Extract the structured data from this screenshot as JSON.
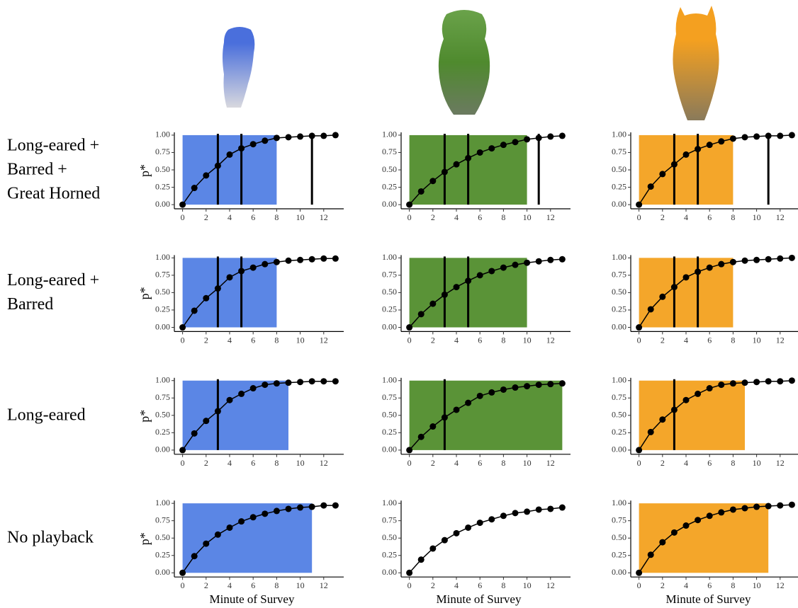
{
  "row_labels": [
    [
      "Long-eared +",
      "Barred +",
      "Great Horned"
    ],
    [
      "Long-eared +",
      "Barred"
    ],
    [
      "Long-eared"
    ],
    [
      "No playback"
    ]
  ],
  "chart_data": [
    {
      "type": "line",
      "color": "#5b86e5",
      "shade": [
        0,
        8
      ],
      "vlines": [
        3,
        5,
        11
      ],
      "ylabel": "p*",
      "x": [
        0,
        1,
        2,
        3,
        4,
        5,
        6,
        7,
        8,
        9,
        10,
        11,
        12,
        13
      ],
      "values": [
        0,
        0.24,
        0.42,
        0.56,
        0.72,
        0.81,
        0.87,
        0.92,
        0.96,
        0.97,
        0.98,
        0.99,
        0.99,
        1.0
      ],
      "xlim": [
        -0.7,
        13.7
      ],
      "ylim": [
        -0.06,
        1.04
      ],
      "xticks": [
        0,
        2,
        4,
        6,
        8,
        10,
        12
      ],
      "yticks": [
        {
          "value": 0,
          "label": "0.00"
        },
        {
          "value": 0.25,
          "label": "0.25"
        },
        {
          "value": 0.5,
          "label": "0.50"
        },
        {
          "value": 0.75,
          "label": "0.75"
        },
        {
          "value": 1,
          "label": "1.00"
        }
      ]
    },
    {
      "type": "line",
      "color": "#5a9337",
      "shade": [
        0,
        10
      ],
      "vlines": [
        3,
        5,
        11
      ],
      "x": [
        0,
        1,
        2,
        3,
        4,
        5,
        6,
        7,
        8,
        9,
        10,
        11,
        12,
        13
      ],
      "values": [
        0,
        0.19,
        0.34,
        0.47,
        0.58,
        0.67,
        0.75,
        0.81,
        0.86,
        0.9,
        0.94,
        0.96,
        0.98,
        0.99
      ],
      "xlim": [
        -0.7,
        13.7
      ],
      "ylim": [
        -0.06,
        1.04
      ],
      "xticks": [
        0,
        2,
        4,
        6,
        8,
        10,
        12
      ],
      "yticks": [
        {
          "value": 0,
          "label": "0.00"
        },
        {
          "value": 0.25,
          "label": "0.25"
        },
        {
          "value": 0.5,
          "label": "0.50"
        },
        {
          "value": 0.75,
          "label": "0.75"
        },
        {
          "value": 1,
          "label": "1.00"
        }
      ]
    },
    {
      "type": "line",
      "color": "#f4a62a",
      "shade": [
        0,
        8
      ],
      "vlines": [
        3,
        5,
        11
      ],
      "x": [
        0,
        1,
        2,
        3,
        4,
        5,
        6,
        7,
        8,
        9,
        10,
        11,
        12,
        13
      ],
      "values": [
        0,
        0.26,
        0.44,
        0.58,
        0.72,
        0.8,
        0.86,
        0.91,
        0.95,
        0.97,
        0.98,
        0.99,
        0.99,
        1.0
      ],
      "xlim": [
        -0.7,
        13.7
      ],
      "ylim": [
        -0.06,
        1.04
      ],
      "xticks": [
        0,
        2,
        4,
        6,
        8,
        10,
        12
      ],
      "yticks": [
        {
          "value": 0,
          "label": "0.00"
        },
        {
          "value": 0.25,
          "label": "0.25"
        },
        {
          "value": 0.5,
          "label": "0.50"
        },
        {
          "value": 0.75,
          "label": "0.75"
        },
        {
          "value": 1,
          "label": "1.00"
        }
      ]
    },
    {
      "type": "line",
      "color": "#5b86e5",
      "shade": [
        0,
        8
      ],
      "vlines": [
        3,
        5
      ],
      "ylabel": "p*",
      "x": [
        0,
        1,
        2,
        3,
        4,
        5,
        6,
        7,
        8,
        9,
        10,
        11,
        12,
        13
      ],
      "values": [
        0,
        0.24,
        0.42,
        0.56,
        0.72,
        0.81,
        0.86,
        0.91,
        0.94,
        0.96,
        0.97,
        0.98,
        0.99,
        0.99
      ],
      "xlim": [
        -0.7,
        13.7
      ],
      "ylim": [
        -0.06,
        1.04
      ],
      "xticks": [
        0,
        2,
        4,
        6,
        8,
        10,
        12
      ],
      "yticks": [
        {
          "value": 0,
          "label": "0.00"
        },
        {
          "value": 0.25,
          "label": "0.25"
        },
        {
          "value": 0.5,
          "label": "0.50"
        },
        {
          "value": 0.75,
          "label": "0.75"
        },
        {
          "value": 1,
          "label": "1.00"
        }
      ]
    },
    {
      "type": "line",
      "color": "#5a9337",
      "shade": [
        0,
        10
      ],
      "vlines": [
        3,
        5
      ],
      "x": [
        0,
        1,
        2,
        3,
        4,
        5,
        6,
        7,
        8,
        9,
        10,
        11,
        12,
        13
      ],
      "values": [
        0,
        0.19,
        0.34,
        0.47,
        0.58,
        0.67,
        0.75,
        0.81,
        0.86,
        0.9,
        0.93,
        0.95,
        0.97,
        0.98
      ],
      "xlim": [
        -0.7,
        13.7
      ],
      "ylim": [
        -0.06,
        1.04
      ],
      "xticks": [
        0,
        2,
        4,
        6,
        8,
        10,
        12
      ],
      "yticks": [
        {
          "value": 0,
          "label": "0.00"
        },
        {
          "value": 0.25,
          "label": "0.25"
        },
        {
          "value": 0.5,
          "label": "0.50"
        },
        {
          "value": 0.75,
          "label": "0.75"
        },
        {
          "value": 1,
          "label": "1.00"
        }
      ]
    },
    {
      "type": "line",
      "color": "#f4a62a",
      "shade": [
        0,
        8
      ],
      "vlines": [
        3,
        5
      ],
      "x": [
        0,
        1,
        2,
        3,
        4,
        5,
        6,
        7,
        8,
        9,
        10,
        11,
        12,
        13
      ],
      "values": [
        0,
        0.26,
        0.44,
        0.58,
        0.72,
        0.8,
        0.86,
        0.91,
        0.94,
        0.96,
        0.97,
        0.98,
        0.99,
        1.0
      ],
      "xlim": [
        -0.7,
        13.7
      ],
      "ylim": [
        -0.06,
        1.04
      ],
      "xticks": [
        0,
        2,
        4,
        6,
        8,
        10,
        12
      ],
      "yticks": [
        {
          "value": 0,
          "label": "0.00"
        },
        {
          "value": 0.25,
          "label": "0.25"
        },
        {
          "value": 0.5,
          "label": "0.50"
        },
        {
          "value": 0.75,
          "label": "0.75"
        },
        {
          "value": 1,
          "label": "1.00"
        }
      ]
    },
    {
      "type": "line",
      "color": "#5b86e5",
      "shade": [
        0,
        9
      ],
      "vlines": [
        3
      ],
      "ylabel": "p*",
      "x": [
        0,
        1,
        2,
        3,
        4,
        5,
        6,
        7,
        8,
        9,
        10,
        11,
        12,
        13
      ],
      "values": [
        0,
        0.24,
        0.42,
        0.56,
        0.72,
        0.81,
        0.89,
        0.94,
        0.96,
        0.97,
        0.98,
        0.99,
        0.99,
        0.99
      ],
      "xlim": [
        -0.7,
        13.7
      ],
      "ylim": [
        -0.06,
        1.04
      ],
      "xticks": [
        0,
        2,
        4,
        6,
        8,
        10,
        12
      ],
      "yticks": [
        {
          "value": 0,
          "label": "0.00"
        },
        {
          "value": 0.25,
          "label": "0.25"
        },
        {
          "value": 0.5,
          "label": "0.50"
        },
        {
          "value": 0.75,
          "label": "0.75"
        },
        {
          "value": 1,
          "label": "1.00"
        }
      ]
    },
    {
      "type": "line",
      "color": "#5a9337",
      "shade": [
        0,
        13
      ],
      "vlines": [
        3
      ],
      "x": [
        0,
        1,
        2,
        3,
        4,
        5,
        6,
        7,
        8,
        9,
        10,
        11,
        12,
        13
      ],
      "values": [
        0,
        0.19,
        0.34,
        0.47,
        0.58,
        0.68,
        0.78,
        0.83,
        0.87,
        0.9,
        0.92,
        0.94,
        0.95,
        0.96
      ],
      "xlim": [
        -0.7,
        13.7
      ],
      "ylim": [
        -0.06,
        1.04
      ],
      "xticks": [
        0,
        2,
        4,
        6,
        8,
        10,
        12
      ],
      "yticks": [
        {
          "value": 0,
          "label": "0.00"
        },
        {
          "value": 0.25,
          "label": "0.25"
        },
        {
          "value": 0.5,
          "label": "0.50"
        },
        {
          "value": 0.75,
          "label": "0.75"
        },
        {
          "value": 1,
          "label": "1.00"
        }
      ]
    },
    {
      "type": "line",
      "color": "#f4a62a",
      "shade": [
        0,
        9
      ],
      "vlines": [
        3
      ],
      "x": [
        0,
        1,
        2,
        3,
        4,
        5,
        6,
        7,
        8,
        9,
        10,
        11,
        12,
        13
      ],
      "values": [
        0,
        0.26,
        0.44,
        0.58,
        0.72,
        0.81,
        0.89,
        0.94,
        0.96,
        0.97,
        0.98,
        0.99,
        0.99,
        1.0
      ],
      "xlim": [
        -0.7,
        13.7
      ],
      "ylim": [
        -0.06,
        1.04
      ],
      "xticks": [
        0,
        2,
        4,
        6,
        8,
        10,
        12
      ],
      "yticks": [
        {
          "value": 0,
          "label": "0.00"
        },
        {
          "value": 0.25,
          "label": "0.25"
        },
        {
          "value": 0.5,
          "label": "0.50"
        },
        {
          "value": 0.75,
          "label": "0.75"
        },
        {
          "value": 1,
          "label": "1.00"
        }
      ]
    },
    {
      "type": "line",
      "color": "#5b86e5",
      "shade": [
        0,
        11
      ],
      "vlines": [],
      "ylabel": "p*",
      "xlabel": "Minute of Survey",
      "x": [
        0,
        1,
        2,
        3,
        4,
        5,
        6,
        7,
        8,
        9,
        10,
        11,
        12,
        13
      ],
      "values": [
        0,
        0.24,
        0.42,
        0.55,
        0.65,
        0.74,
        0.8,
        0.85,
        0.89,
        0.92,
        0.94,
        0.95,
        0.97,
        0.97
      ],
      "xlim": [
        -0.7,
        13.7
      ],
      "ylim": [
        -0.06,
        1.04
      ],
      "xticks": [
        0,
        2,
        4,
        6,
        8,
        10,
        12
      ],
      "yticks": [
        {
          "value": 0,
          "label": "0.00"
        },
        {
          "value": 0.25,
          "label": "0.25"
        },
        {
          "value": 0.5,
          "label": "0.50"
        },
        {
          "value": 0.75,
          "label": "0.75"
        },
        {
          "value": 1,
          "label": "1.00"
        }
      ]
    },
    {
      "type": "line",
      "color": "#5a9337",
      "vlines": [],
      "xlabel": "Minute of Survey",
      "x": [
        0,
        1,
        2,
        3,
        4,
        5,
        6,
        7,
        8,
        9,
        10,
        11,
        12,
        13
      ],
      "values": [
        0,
        0.19,
        0.35,
        0.47,
        0.57,
        0.65,
        0.72,
        0.77,
        0.82,
        0.86,
        0.88,
        0.91,
        0.92,
        0.94
      ],
      "xlim": [
        -0.7,
        13.7
      ],
      "ylim": [
        -0.06,
        1.04
      ],
      "xticks": [
        0,
        2,
        4,
        6,
        8,
        10,
        12
      ],
      "yticks": [
        {
          "value": 0,
          "label": "0.00"
        },
        {
          "value": 0.25,
          "label": "0.25"
        },
        {
          "value": 0.5,
          "label": "0.50"
        },
        {
          "value": 0.75,
          "label": "0.75"
        },
        {
          "value": 1,
          "label": "1.00"
        }
      ]
    },
    {
      "type": "line",
      "color": "#f4a62a",
      "shade": [
        0,
        11
      ],
      "vlines": [],
      "xlabel": "Minute of Survey",
      "x": [
        0,
        1,
        2,
        3,
        4,
        5,
        6,
        7,
        8,
        9,
        10,
        11,
        12,
        13
      ],
      "values": [
        0,
        0.26,
        0.44,
        0.58,
        0.68,
        0.76,
        0.82,
        0.87,
        0.91,
        0.93,
        0.95,
        0.96,
        0.97,
        0.98
      ],
      "xlim": [
        -0.7,
        13.7
      ],
      "ylim": [
        -0.06,
        1.04
      ],
      "xticks": [
        0,
        2,
        4,
        6,
        8,
        10,
        12
      ],
      "yticks": [
        {
          "value": 0,
          "label": "0.00"
        },
        {
          "value": 0.25,
          "label": "0.25"
        },
        {
          "value": 0.5,
          "label": "0.50"
        },
        {
          "value": 0.75,
          "label": "0.75"
        },
        {
          "value": 1,
          "label": "1.00"
        }
      ]
    }
  ]
}
